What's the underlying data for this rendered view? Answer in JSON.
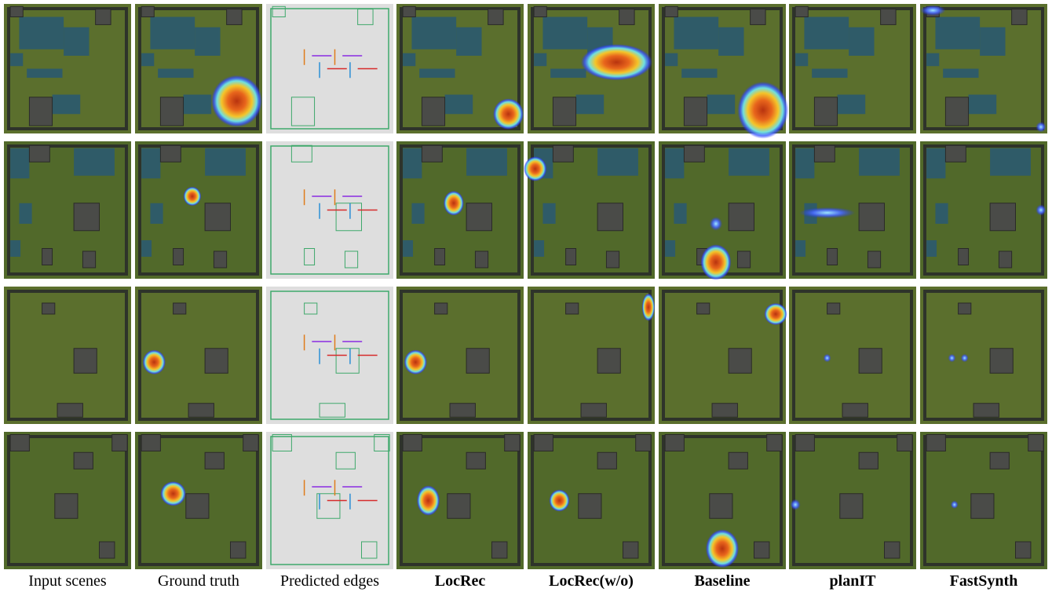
{
  "figure": {
    "captions": [
      "Input scenes",
      "Ground truth",
      "Predicted edges",
      "LocRec",
      "LocRec(w/o)",
      "Baseline",
      "planIT",
      "FastSynth"
    ]
  }
}
